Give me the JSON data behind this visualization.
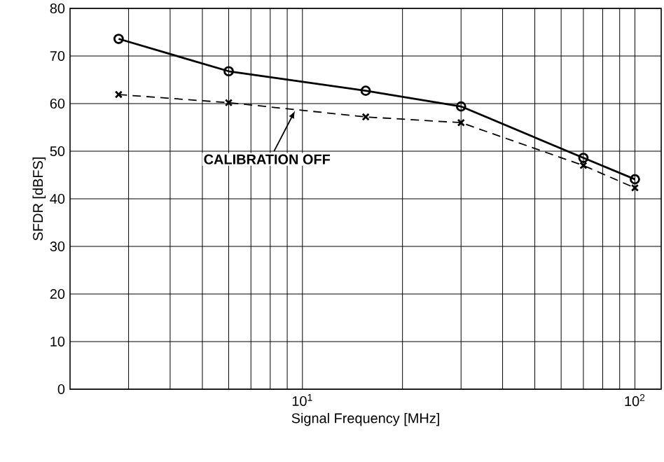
{
  "chart_data": {
    "type": "line",
    "xlabel": "Signal Frequency [MHz]",
    "ylabel": "SFDR [dBFS]",
    "log": "x",
    "grid": true,
    "x": [
      2.8,
      6,
      15.5,
      30,
      70,
      100
    ],
    "series": [
      {
        "color": "#000000",
        "marker": "circle",
        "line_style": "solid",
        "values": [
          73.6,
          66.8,
          62.7,
          59.4,
          48.6,
          44.1
        ]
      },
      {
        "color": "#000000",
        "marker": "cross",
        "line_style": "dashed",
        "values": [
          61.9,
          60.2,
          57.2,
          56.0,
          47.0,
          42.3
        ]
      }
    ],
    "xlim": [
      2,
      120
    ],
    "xticks": [
      {
        "value": 10,
        "label": "10$^{1}$"
      },
      {
        "value": 100,
        "label": "10$^{2}$"
      }
    ],
    "ylim": [
      0,
      80
    ],
    "yticks": [
      0,
      10,
      20,
      30,
      40,
      50,
      60,
      70,
      80
    ],
    "annotations": [
      {
        "text": "CALIBRATION OFF",
        "x": 9.5,
        "y": 58.5
      }
    ]
  }
}
